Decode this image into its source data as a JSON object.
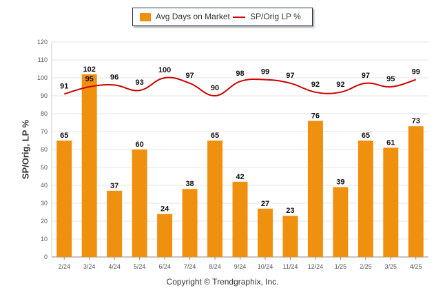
{
  "legend": {
    "bar_label": "Avg Days on Market",
    "line_label": "SP/Orig LP %"
  },
  "footer": {
    "copyright": "Copyright © Trendgraphix, Inc."
  },
  "colors": {
    "bar": "#f0900f",
    "line": "#cc0000",
    "grid": "#e6e6e6",
    "axis": "#888888"
  },
  "chart_data": {
    "type": "bar",
    "title": "",
    "xlabel": "",
    "ylabel": "SP/Orig, LP %",
    "ylim": [
      0,
      120
    ],
    "yticks": [
      0,
      10,
      20,
      30,
      40,
      50,
      60,
      70,
      80,
      90,
      100,
      110,
      120
    ],
    "grid": true,
    "legend_position": "top-center",
    "categories": [
      "2/24",
      "3/24",
      "4/24",
      "5/24",
      "6/24",
      "7/24",
      "8/24",
      "9/24",
      "10/24",
      "11/24",
      "12/24",
      "1/25",
      "2/25",
      "3/25",
      "4/25"
    ],
    "series": [
      {
        "name": "Avg Days on Market",
        "type": "bar",
        "values": [
          65,
          102,
          37,
          60,
          24,
          38,
          65,
          42,
          27,
          23,
          76,
          39,
          65,
          61,
          73
        ]
      },
      {
        "name": "SP/Orig LP %",
        "type": "line",
        "values": [
          91,
          95,
          96,
          93,
          100,
          97,
          90,
          98,
          99,
          97,
          92,
          92,
          97,
          95,
          99
        ]
      }
    ]
  }
}
